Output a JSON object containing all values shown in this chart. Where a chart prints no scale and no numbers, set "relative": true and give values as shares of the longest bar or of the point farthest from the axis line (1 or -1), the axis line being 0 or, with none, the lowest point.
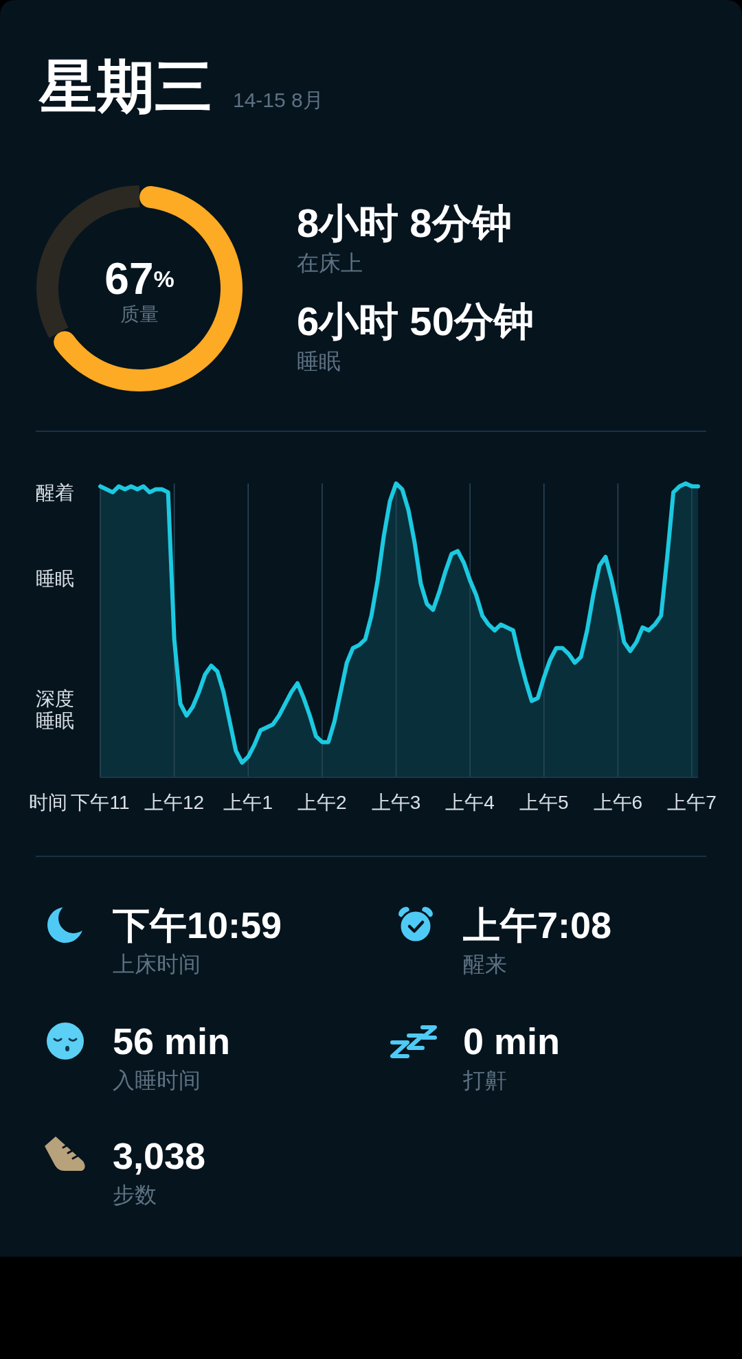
{
  "chart_data": [
    {
      "type": "donut",
      "title": "星期三",
      "subtitle": "14-15 8月",
      "categories": [
        null,
        null
      ],
      "values": [
        67,
        33
      ],
      "colors": [
        "#fdaa24",
        "#2c2922"
      ],
      "value_labels": [
        "67%",
        null
      ],
      "annotations": [
        "质量"
      ]
    },
    {
      "type": "other",
      "annotations": [
        "8小时 8分钟",
        "在床上",
        "6小时 50分钟",
        "睡眠"
      ]
    },
    {
      "type": "area",
      "relative": true,
      "xlabel": "时间",
      "color": "#1cc9e0",
      "categories": [
        "下午11",
        null,
        null,
        null,
        null,
        null,
        null,
        null,
        null,
        null,
        null,
        null,
        "上午12",
        null,
        null,
        null,
        null,
        null,
        null,
        null,
        null,
        null,
        null,
        null,
        "上午1",
        null,
        null,
        null,
        null,
        null,
        null,
        null,
        null,
        null,
        null,
        null,
        "上午2",
        null,
        null,
        null,
        null,
        null,
        null,
        null,
        null,
        null,
        null,
        null,
        "上午3",
        null,
        null,
        null,
        null,
        null,
        null,
        null,
        null,
        null,
        null,
        null,
        "上午4",
        null,
        null,
        null,
        null,
        null,
        null,
        null,
        null,
        null,
        null,
        null,
        "上午5",
        null,
        null,
        null,
        null,
        null,
        null,
        null,
        null,
        null,
        null,
        null,
        "上午6",
        null,
        null,
        null,
        null,
        null,
        null,
        null,
        null,
        null,
        null,
        null,
        "上午7",
        null
      ],
      "values": [
        0.99,
        0.98,
        0.97,
        0.99,
        0.98,
        0.99,
        0.98,
        0.99,
        0.97,
        0.98,
        0.98,
        0.97,
        0.47,
        0.25,
        0.21,
        0.24,
        0.29,
        0.35,
        0.38,
        0.36,
        0.29,
        0.19,
        0.09,
        0.05,
        0.07,
        0.11,
        0.16,
        0.17,
        0.18,
        0.21,
        0.25,
        0.29,
        0.32,
        0.27,
        0.21,
        0.14,
        0.12,
        0.12,
        0.19,
        0.29,
        0.39,
        0.44,
        0.45,
        0.47,
        0.55,
        0.67,
        0.82,
        0.94,
        1.0,
        0.98,
        0.91,
        0.8,
        0.66,
        0.59,
        0.57,
        0.63,
        0.7,
        0.76,
        0.77,
        0.73,
        0.67,
        0.62,
        0.55,
        0.52,
        0.5,
        0.52,
        0.51,
        0.5,
        0.41,
        0.33,
        0.26,
        0.27,
        0.34,
        0.4,
        0.44,
        0.44,
        0.42,
        0.39,
        0.41,
        0.5,
        0.62,
        0.72,
        0.75,
        0.67,
        0.57,
        0.46,
        0.43,
        0.46,
        0.51,
        0.5,
        0.52,
        0.55,
        0.75,
        0.97,
        0.99,
        1.0,
        0.99,
        0.99
      ],
      "grid": "x",
      "annotations": [
        "醒着",
        "睡眠",
        "深度睡眠"
      ]
    },
    {
      "type": "other",
      "annotations": [
        "下午10:59",
        "上床时间",
        "上午7:08",
        "醒来",
        "56 min",
        "入睡时间",
        "0 min",
        "打鼾",
        "3,038",
        "步数"
      ]
    }
  ]
}
